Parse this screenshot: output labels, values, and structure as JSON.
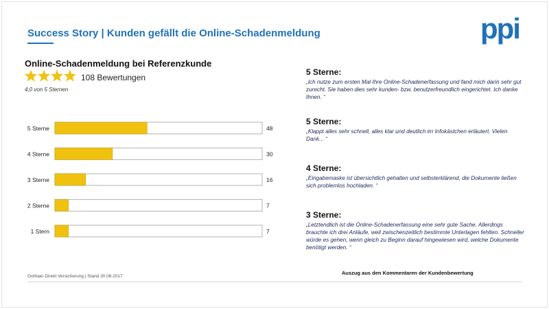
{
  "header": {
    "title": "Success Story | Kunden gefällt die Online-Schadenmeldung",
    "logo_text": "ppi",
    "brand_color": "#1f72b8"
  },
  "rating": {
    "subtitle": "Online-Schadenmeldung bei Referenzkunde",
    "stars": 4,
    "count_label": "108 Bewertungen",
    "average_label": "4,0 von 5 Sternen",
    "star_color": "#f0c20f"
  },
  "chart_data": {
    "type": "bar",
    "orientation": "horizontal",
    "categories": [
      "5 Sterne",
      "4 Sterne",
      "3 Sterne",
      "2 Sterne",
      "1 Stern"
    ],
    "values": [
      48,
      30,
      16,
      7,
      7
    ],
    "value_labels": [
      "48",
      "30",
      "16",
      "7",
      "7"
    ],
    "xlim": [
      0,
      108
    ],
    "bar_color": "#f0c20f",
    "track_color": "#ffffff"
  },
  "reviews": [
    {
      "heading": "5 Sterne:",
      "text": "„Ich nutze zum ersten Mal Ihre Online-Schadenerfassung und fand mich darin sehr gut zurecht. Sie haben dies sehr kunden- bzw. benutzerfreundlich eingerichtet. Ich danke Ihnen. “"
    },
    {
      "heading": "5 Sterne:",
      "text": "„Klappt alles sehr schnell, alles klar und deutlich im Infokästchen erläutert. Vielen Dank... “"
    },
    {
      "heading": "4 Sterne:",
      "text": "„Eingabemaske ist übersichtlich gehalten und selbsterklärend, die Dokumente ließen sich problemlos hochladen. “"
    },
    {
      "heading": "3 Sterne:",
      "text": "„Letztendlich ist die Online-Schadenerfassung eine sehr gute Sache. Allerdings brauchte ich drei Anläufe, weil zwischenzeitlich bestimmte Unterlagen fehlten. Schneller würde es gehen, wenn gleich zu Beginn darauf hingewiesen wird, welche Dokumente benötigt werden. “"
    }
  ],
  "footer": {
    "left": "Gothaer Direkt Versicherung | Stand 30.08.2017",
    "right": "Auszug aus den Kommentaren der Kundenbewertung"
  }
}
